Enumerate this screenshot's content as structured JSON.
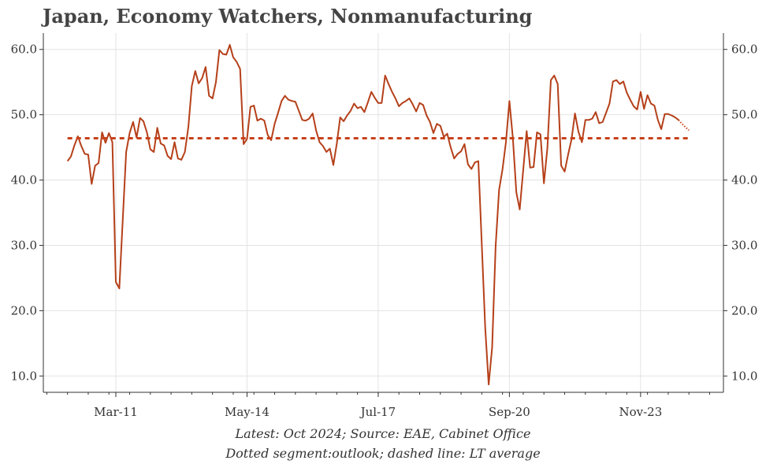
{
  "title": "Japan, Economy Watchers, Nonmanufacturing",
  "footer": {
    "line1": "Latest: Oct 2024; Source: EAE, Cabinet Office",
    "line2": "Dotted segment:outlook; dashed line: LT average"
  },
  "chart_data": {
    "type": "line",
    "title": "Japan, Economy Watchers, Nonmanufacturing",
    "ylim": [
      7.5,
      62.5
    ],
    "xlim": [
      "2009-06",
      "2025-11"
    ],
    "yticks": [
      10,
      20,
      30,
      40,
      50,
      60
    ],
    "ytick_labels": [
      "10.0",
      "20.0",
      "30.0",
      "40.0",
      "50.0",
      "60.0"
    ],
    "xticks": [
      "2011-03",
      "2014-05",
      "2017-07",
      "2020-09",
      "2023-11"
    ],
    "xtick_labels": [
      "Mar-11",
      "May-14",
      "Jul-17",
      "Sep-20",
      "Nov-23"
    ],
    "grid": true,
    "colors": {
      "line": "#b5401a",
      "average": "#c8421a",
      "outlook": "#c8421a"
    },
    "series": [
      {
        "style": "solid",
        "x": [
          "2010-01",
          "2010-02",
          "2010-03",
          "2010-04",
          "2010-05",
          "2010-06",
          "2010-07",
          "2010-08",
          "2010-09",
          "2010-10",
          "2010-11",
          "2010-12",
          "2011-01",
          "2011-02",
          "2011-03",
          "2011-04",
          "2011-05",
          "2011-06",
          "2011-07",
          "2011-08",
          "2011-09",
          "2011-10",
          "2011-11",
          "2011-12",
          "2012-01",
          "2012-02",
          "2012-03",
          "2012-04",
          "2012-05",
          "2012-06",
          "2012-07",
          "2012-08",
          "2012-09",
          "2012-10",
          "2012-11",
          "2012-12",
          "2013-01",
          "2013-02",
          "2013-03",
          "2013-04",
          "2013-05",
          "2013-06",
          "2013-07",
          "2013-08",
          "2013-09",
          "2013-10",
          "2013-11",
          "2013-12",
          "2014-01",
          "2014-02",
          "2014-03",
          "2014-04",
          "2014-05",
          "2014-06",
          "2014-07",
          "2014-08",
          "2014-09",
          "2014-10",
          "2014-11",
          "2014-12",
          "2015-01",
          "2015-02",
          "2015-03",
          "2015-04",
          "2015-05",
          "2015-06",
          "2015-07",
          "2015-08",
          "2015-09",
          "2015-10",
          "2015-11",
          "2015-12",
          "2016-01",
          "2016-02",
          "2016-03",
          "2016-04",
          "2016-05",
          "2016-06",
          "2016-07",
          "2016-08",
          "2016-09",
          "2016-10",
          "2016-11",
          "2016-12",
          "2017-01",
          "2017-02",
          "2017-03",
          "2017-04",
          "2017-05",
          "2017-06",
          "2017-07",
          "2017-08",
          "2017-09",
          "2017-10",
          "2017-11",
          "2017-12",
          "2018-01",
          "2018-02",
          "2018-03",
          "2018-04",
          "2018-05",
          "2018-06",
          "2018-07",
          "2018-08",
          "2018-09",
          "2018-10",
          "2018-11",
          "2018-12",
          "2019-01",
          "2019-02",
          "2019-03",
          "2019-04",
          "2019-05",
          "2019-06",
          "2019-07",
          "2019-08",
          "2019-09",
          "2019-10",
          "2019-11",
          "2019-12",
          "2020-01",
          "2020-02",
          "2020-03",
          "2020-04",
          "2020-05",
          "2020-06",
          "2020-07",
          "2020-08",
          "2020-09",
          "2020-10",
          "2020-11",
          "2020-12",
          "2021-01",
          "2021-02",
          "2021-03",
          "2021-04",
          "2021-05",
          "2021-06",
          "2021-07",
          "2021-08",
          "2021-09",
          "2021-10",
          "2021-11",
          "2021-12",
          "2022-01",
          "2022-02",
          "2022-03",
          "2022-04",
          "2022-05",
          "2022-06",
          "2022-07",
          "2022-08",
          "2022-09",
          "2022-10",
          "2022-11",
          "2022-12",
          "2023-01",
          "2023-02",
          "2023-03",
          "2023-04",
          "2023-05",
          "2023-06",
          "2023-07",
          "2023-08",
          "2023-09",
          "2023-10",
          "2023-11",
          "2023-12",
          "2024-01",
          "2024-02",
          "2024-03",
          "2024-04",
          "2024-05",
          "2024-06",
          "2024-07",
          "2024-08",
          "2024-09",
          "2024-10"
        ],
        "values": [
          42.9,
          43.6,
          45.3,
          46.7,
          45.2,
          44.0,
          43.9,
          39.4,
          42.2,
          42.6,
          47.3,
          45.7,
          47.2,
          45.8,
          24.4,
          23.4,
          34.0,
          44.3,
          47.2,
          48.9,
          46.5,
          49.5,
          49.0,
          47.3,
          44.7,
          44.3,
          48.0,
          45.6,
          45.3,
          43.7,
          43.2,
          45.8,
          43.3,
          43.1,
          44.3,
          48.1,
          54.4,
          56.7,
          54.8,
          55.6,
          57.3,
          52.9,
          52.5,
          55.0,
          59.9,
          59.3,
          59.2,
          60.7,
          58.8,
          58.1,
          57.0,
          45.5,
          46.3,
          51.2,
          51.4,
          49.1,
          49.4,
          49.1,
          46.9,
          46.1,
          48.6,
          50.3,
          52.1,
          52.9,
          52.3,
          52.1,
          52.0,
          50.6,
          49.2,
          49.1,
          49.4,
          50.2,
          47.6,
          45.8,
          45.2,
          44.3,
          44.8,
          42.3,
          45.6,
          49.6,
          49.0,
          49.9,
          50.6,
          51.7,
          51.0,
          51.2,
          50.4,
          51.9,
          53.5,
          52.6,
          51.8,
          51.8,
          56.0,
          54.7,
          53.5,
          52.5,
          51.3,
          51.8,
          52.1,
          52.5,
          51.6,
          50.5,
          51.8,
          51.5,
          49.9,
          48.9,
          47.2,
          48.6,
          48.3,
          46.6,
          47.1,
          45.0,
          43.3,
          44.0,
          44.4,
          45.5,
          42.4,
          41.7,
          42.7,
          42.9,
          30.0,
          17.4,
          8.7,
          14.4,
          29.8,
          38.5,
          41.6,
          45.8,
          52.1,
          46.4,
          38.1,
          35.5,
          41.5,
          47.5,
          41.9,
          42.0,
          47.3,
          47.0,
          39.5,
          44.9,
          55.3,
          56.0,
          54.7,
          42.2,
          41.3,
          43.9,
          46.2,
          50.2,
          47.4,
          45.8,
          49.2,
          49.2,
          49.4,
          50.4,
          48.7,
          48.9,
          50.3,
          51.7,
          55.1,
          55.3,
          54.7,
          55.1,
          53.4,
          52.3,
          51.3,
          50.8,
          53.5,
          50.9,
          53.0,
          51.7,
          51.4,
          49.2,
          47.8,
          50.1,
          50.1,
          49.9,
          49.6,
          49.2
        ]
      },
      {
        "style": "dotted",
        "x": [
          "2024-10",
          "2024-11",
          "2024-12",
          "2025-01"
        ],
        "values": [
          49.2,
          48.6,
          48.1,
          47.6
        ]
      },
      {
        "style": "dashed",
        "x": [
          "2010-01",
          "2025-01"
        ],
        "values": [
          46.4,
          46.4
        ]
      }
    ]
  }
}
